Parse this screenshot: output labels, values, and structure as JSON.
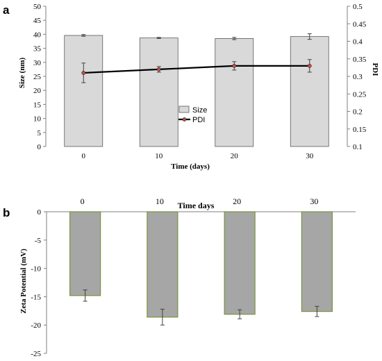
{
  "chart_data": [
    {
      "panel": "a",
      "type": "bar",
      "categories": [
        "0",
        "10",
        "20",
        "30"
      ],
      "xlabel": "Time (days)",
      "ylabel": "Size (nm)",
      "y2label": "PDI",
      "ylim": [
        0,
        50
      ],
      "yticks": [
        "0",
        "5",
        "10",
        "15",
        "20",
        "25",
        "30",
        "35",
        "40",
        "45",
        "50"
      ],
      "y2lim": [
        0.1,
        0.5
      ],
      "y2ticks": [
        "0.1",
        "0.15",
        "0.2",
        "0.25",
        "0.3",
        "0.35",
        "0.4",
        "0.45",
        "0.5"
      ],
      "legend_position": "center",
      "series": [
        {
          "name": "Size",
          "type": "bar",
          "axis": "left",
          "values": [
            39.6,
            38.7,
            38.5,
            39.2
          ],
          "errors": [
            0.3,
            0.2,
            0.4,
            1.0
          ],
          "color": "#d9d9d9"
        },
        {
          "name": "PDI",
          "type": "line",
          "axis": "right",
          "values": [
            0.31,
            0.32,
            0.33,
            0.33
          ],
          "errors": [
            0.028,
            0.008,
            0.012,
            0.018
          ],
          "color": "#000000",
          "marker_color": "#c0504d"
        }
      ]
    },
    {
      "panel": "b",
      "type": "bar",
      "categories": [
        "0",
        "10",
        "20",
        "30"
      ],
      "xlabel": "Time days",
      "ylabel": "Zeta Potential (mV)",
      "ylim": [
        -25,
        0
      ],
      "yticks": [
        "0",
        "-5",
        "-10",
        "-15",
        "-20",
        "-25"
      ],
      "series": [
        {
          "values": [
            -14.8,
            -18.6,
            -18.1,
            -17.6
          ],
          "errors": [
            1.0,
            1.4,
            0.8,
            0.9
          ],
          "color": "#a6a6a6",
          "edge_color": "#77933c"
        }
      ]
    }
  ]
}
